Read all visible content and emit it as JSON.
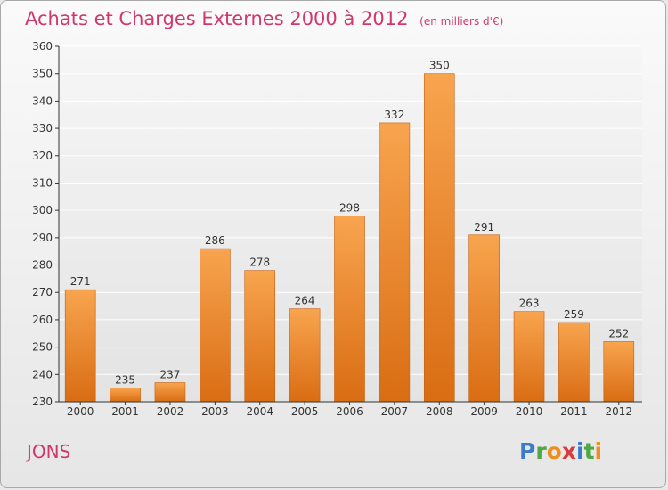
{
  "title": "Achats et Charges Externes 2000 à 2012",
  "unit_note": "(en milliers d'€)",
  "commune": "JONS",
  "brand": {
    "name": "Proxiti",
    "letters": [
      {
        "char": "P",
        "color": "#3a7ccb"
      },
      {
        "char": "r",
        "color": "#4ea844"
      },
      {
        "char": "o",
        "color": "#ef8e1c"
      },
      {
        "char": "x",
        "color": "#d83b3b"
      },
      {
        "char": "i",
        "color": "#3a7ccb"
      },
      {
        "char": "t",
        "color": "#4ea844"
      },
      {
        "char": "i",
        "color": "#ef8e1c"
      }
    ]
  },
  "colors": {
    "title": "#d2376b",
    "bar_light": "#f8a44f",
    "bar_dark": "#d96d13",
    "bar_edge": "#c45f0e",
    "text": "#333333",
    "grid": "#ffffff",
    "axis": "#333333"
  },
  "chart_data": {
    "type": "bar",
    "categories": [
      "2000",
      "2001",
      "2002",
      "2003",
      "2004",
      "2005",
      "2006",
      "2007",
      "2008",
      "2009",
      "2010",
      "2011",
      "2012"
    ],
    "values": [
      271,
      235,
      237,
      286,
      278,
      264,
      298,
      332,
      350,
      291,
      263,
      259,
      252
    ],
    "data_labels": [
      "271",
      "235",
      "237",
      "286",
      "278",
      "264",
      "298",
      "332",
      "350",
      "291",
      "263",
      "259",
      "252"
    ],
    "title": "Achats et Charges Externes 2000 à 2012",
    "xlabel": "",
    "ylabel": "",
    "ylim": [
      230,
      360
    ],
    "yticks": [
      "230",
      "240",
      "250",
      "260",
      "270",
      "280",
      "290",
      "300",
      "310",
      "320",
      "330",
      "340",
      "350",
      "360"
    ],
    "grid": true,
    "legend": "none"
  }
}
